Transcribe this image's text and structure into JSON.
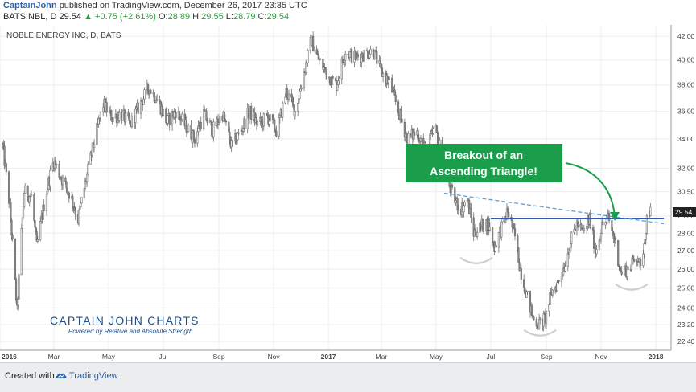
{
  "header": {
    "author": "CaptainJohn",
    "published_text": "published on TradingView.com, December 26, 2017 23:35 UTC",
    "symbol_info": "BATS:NBL, D",
    "last_price": "29.54",
    "change_arrow": "▲",
    "change": "+0.75 (+2.61%)",
    "ohlc": [
      {
        "label": "O:",
        "value": "28.89"
      },
      {
        "label": "H:",
        "value": "29.55"
      },
      {
        "label": "L:",
        "value": "28.79"
      },
      {
        "label": "C:",
        "value": "29.54"
      }
    ],
    "up_color": "#2a9e3c",
    "author_color": "#2a62ad"
  },
  "chart_data": {
    "type": "candlestick",
    "title": "NOBLE ENERGY INC, D, BATS",
    "x_tick_labels": [
      "2016",
      "Mar",
      "May",
      "Jul",
      "Sep",
      "Nov",
      "2017",
      "Mar",
      "May",
      "Jul",
      "Sep",
      "Nov",
      "2018"
    ],
    "x_ticks": [
      "2016-01-01",
      "2016-03-01",
      "2016-05-01",
      "2016-07-01",
      "2016-09-01",
      "2016-11-01",
      "2017-01-01",
      "2017-03-01",
      "2017-05-01",
      "2017-07-01",
      "2017-09-01",
      "2017-11-01",
      "2018-01-01"
    ],
    "xlim": [
      "2016-01-01",
      "2018-01-18"
    ],
    "y_tick_labels": [
      "42.00",
      "40.00",
      "38.00",
      "36.00",
      "34.00",
      "32.00",
      "30.50",
      "29.00",
      "28.00",
      "27.00",
      "26.00",
      "25.00",
      "24.00",
      "23.20",
      "22.40"
    ],
    "y_ticks": [
      42.0,
      40.0,
      38.0,
      36.0,
      34.0,
      32.0,
      30.5,
      29.0,
      28.0,
      27.0,
      26.0,
      25.0,
      24.0,
      23.2,
      22.4
    ],
    "y_scale": "log",
    "ylim": [
      22.0,
      43.0
    ],
    "last_price_label": "29.54",
    "price_path": [
      {
        "x": "2016-01-04",
        "y": 33.5
      },
      {
        "x": "2016-01-12",
        "y": 29.5
      },
      {
        "x": "2016-01-20",
        "y": 23.8
      },
      {
        "x": "2016-01-28",
        "y": 30.5
      },
      {
        "x": "2016-02-05",
        "y": 30.2
      },
      {
        "x": "2016-02-11",
        "y": 27.2
      },
      {
        "x": "2016-02-22",
        "y": 30.6
      },
      {
        "x": "2016-03-01",
        "y": 32.5
      },
      {
        "x": "2016-03-10",
        "y": 31.3
      },
      {
        "x": "2016-03-20",
        "y": 30.2
      },
      {
        "x": "2016-03-28",
        "y": 28.8
      },
      {
        "x": "2016-04-05",
        "y": 31.0
      },
      {
        "x": "2016-04-15",
        "y": 33.8
      },
      {
        "x": "2016-04-25",
        "y": 36.5
      },
      {
        "x": "2016-05-05",
        "y": 35.5
      },
      {
        "x": "2016-05-15",
        "y": 35.8
      },
      {
        "x": "2016-05-25",
        "y": 35.0
      },
      {
        "x": "2016-06-05",
        "y": 36.5
      },
      {
        "x": "2016-06-15",
        "y": 37.8
      },
      {
        "x": "2016-06-25",
        "y": 36.8
      },
      {
        "x": "2016-07-05",
        "y": 35.2
      },
      {
        "x": "2016-07-15",
        "y": 36.0
      },
      {
        "x": "2016-07-25",
        "y": 35.0
      },
      {
        "x": "2016-08-05",
        "y": 34.0
      },
      {
        "x": "2016-08-15",
        "y": 35.8
      },
      {
        "x": "2016-08-25",
        "y": 34.6
      },
      {
        "x": "2016-09-05",
        "y": 35.8
      },
      {
        "x": "2016-09-15",
        "y": 33.5
      },
      {
        "x": "2016-09-25",
        "y": 34.5
      },
      {
        "x": "2016-10-05",
        "y": 36.0
      },
      {
        "x": "2016-10-15",
        "y": 35.0
      },
      {
        "x": "2016-10-25",
        "y": 35.6
      },
      {
        "x": "2016-11-05",
        "y": 34.5
      },
      {
        "x": "2016-11-15",
        "y": 37.5
      },
      {
        "x": "2016-11-25",
        "y": 36.0
      },
      {
        "x": "2016-12-05",
        "y": 39.0
      },
      {
        "x": "2016-12-13",
        "y": 41.7
      },
      {
        "x": "2016-12-20",
        "y": 40.2
      },
      {
        "x": "2016-12-31",
        "y": 38.8
      },
      {
        "x": "2017-01-10",
        "y": 38.0
      },
      {
        "x": "2017-01-20",
        "y": 40.8
      },
      {
        "x": "2017-01-30",
        "y": 40.2
      },
      {
        "x": "2017-02-10",
        "y": 40.5
      },
      {
        "x": "2017-02-20",
        "y": 40.8
      },
      {
        "x": "2017-03-01",
        "y": 39.0
      },
      {
        "x": "2017-03-10",
        "y": 38.2
      },
      {
        "x": "2017-03-20",
        "y": 36.0
      },
      {
        "x": "2017-03-30",
        "y": 34.0
      },
      {
        "x": "2017-04-10",
        "y": 34.5
      },
      {
        "x": "2017-04-20",
        "y": 33.2
      },
      {
        "x": "2017-04-30",
        "y": 34.8
      },
      {
        "x": "2017-05-05",
        "y": 33.5
      },
      {
        "x": "2017-05-12",
        "y": 31.5
      },
      {
        "x": "2017-05-20",
        "y": 30.2
      },
      {
        "x": "2017-05-28",
        "y": 29.4
      },
      {
        "x": "2017-06-05",
        "y": 30.0
      },
      {
        "x": "2017-06-12",
        "y": 28.0
      },
      {
        "x": "2017-06-20",
        "y": 28.4
      },
      {
        "x": "2017-06-28",
        "y": 28.6
      },
      {
        "x": "2017-07-05",
        "y": 27.2
      },
      {
        "x": "2017-07-12",
        "y": 28.2
      },
      {
        "x": "2017-07-20",
        "y": 29.3
      },
      {
        "x": "2017-07-28",
        "y": 27.8
      },
      {
        "x": "2017-08-03",
        "y": 26.0
      },
      {
        "x": "2017-08-10",
        "y": 24.7
      },
      {
        "x": "2017-08-17",
        "y": 23.5
      },
      {
        "x": "2017-08-24",
        "y": 23.2
      },
      {
        "x": "2017-08-31",
        "y": 23.5
      },
      {
        "x": "2017-09-07",
        "y": 24.8
      },
      {
        "x": "2017-09-14",
        "y": 25.3
      },
      {
        "x": "2017-09-21",
        "y": 26.2
      },
      {
        "x": "2017-09-28",
        "y": 27.5
      },
      {
        "x": "2017-10-05",
        "y": 28.5
      },
      {
        "x": "2017-10-12",
        "y": 28.0
      },
      {
        "x": "2017-10-19",
        "y": 28.8
      },
      {
        "x": "2017-10-26",
        "y": 27.0
      },
      {
        "x": "2017-11-02",
        "y": 28.4
      },
      {
        "x": "2017-11-09",
        "y": 28.9
      },
      {
        "x": "2017-11-16",
        "y": 27.6
      },
      {
        "x": "2017-11-23",
        "y": 25.8
      },
      {
        "x": "2017-11-30",
        "y": 26.0
      },
      {
        "x": "2017-12-07",
        "y": 26.4
      },
      {
        "x": "2017-12-12",
        "y": 26.8
      },
      {
        "x": "2017-12-15",
        "y": 25.9
      },
      {
        "x": "2017-12-19",
        "y": 27.5
      },
      {
        "x": "2017-12-22",
        "y": 28.8
      },
      {
        "x": "2017-12-26",
        "y": 29.54
      }
    ],
    "annotations": {
      "callout_text": "Breakout of an Ascending Triangle!",
      "callout_color": "#1a9e4b",
      "horizontal_line": {
        "y": 28.85,
        "x_start": "2017-07-01",
        "x_end": "2018-01-10",
        "color": "#2e5aa8"
      },
      "trendline": {
        "start": {
          "x": "2017-05-10",
          "y": 30.4
        },
        "end": {
          "x": "2018-01-10",
          "y": 28.55
        },
        "color": "#5da0d8",
        "style": "dashed"
      },
      "head_and_shoulders_arcs": [
        {
          "x": "2017-06-15",
          "y": 26.4
        },
        {
          "x": "2017-08-25",
          "y": 22.75
        },
        {
          "x": "2017-12-05",
          "y": 25.0
        }
      ]
    },
    "watermark": {
      "brand": "CAPTAIN JOHN CHARTS",
      "subtitle": "Powered by Relative and Absolute Strength"
    },
    "colors": {
      "candles": "#888888",
      "grid": "#eeeeee",
      "axis_text": "#444444",
      "last_price_badge": "#222222"
    }
  },
  "footer": {
    "created_with": "Created with",
    "brand": "TradingView"
  }
}
